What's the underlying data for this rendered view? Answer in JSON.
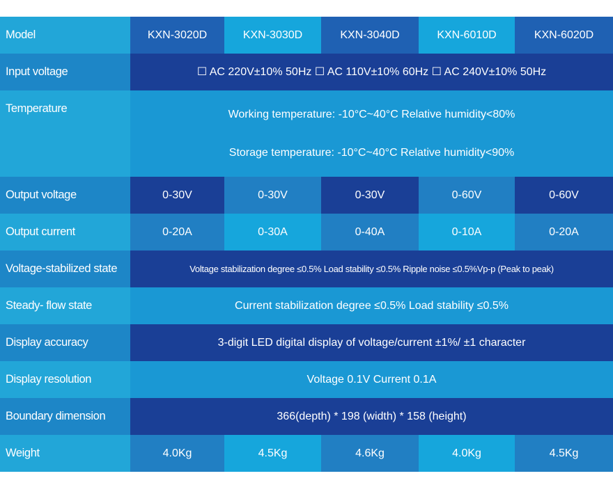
{
  "table": {
    "model": {
      "label": "Model",
      "values": [
        "KXN-3020D",
        "KXN-3030D",
        "KXN-3040D",
        "KXN-6010D",
        "KXN-6020D"
      ]
    },
    "input_voltage": {
      "label": "Input voltage",
      "value": "☐ AC 220V±10% 50Hz ☐ AC 110V±10% 60Hz ☐ AC 240V±10% 50Hz"
    },
    "temperature": {
      "label": "Temperature",
      "working": "Working temperature: -10°C~40°C Relative humidity<80%",
      "storage": "Storage temperature: -10°C~40°C Relative humidity<90%"
    },
    "output_voltage": {
      "label": "Output voltage",
      "values": [
        "0-30V",
        "0-30V",
        "0-30V",
        "0-60V",
        "0-60V"
      ]
    },
    "output_current": {
      "label": "Output current",
      "values": [
        "0-20A",
        "0-30A",
        "0-40A",
        "0-10A",
        "0-20A"
      ]
    },
    "voltage_stabilized": {
      "label": "Voltage-stabilized state",
      "value": "Voltage stabilization degree ≤0.5%  Load stability ≤0.5%  Ripple noise ≤0.5%Vp-p (Peak to peak)"
    },
    "steady_flow": {
      "label": "Steady- flow state",
      "value": "Current stabilization degree ≤0.5%  Load stability ≤0.5%"
    },
    "display_accuracy": {
      "label": "Display accuracy",
      "value": "3-digit LED digital display of voltage/current ±1%/ ±1 character"
    },
    "display_resolution": {
      "label": "Display resolution",
      "value": "Voltage 0.1V  Current 0.1A"
    },
    "boundary_dimension": {
      "label": "Boundary dimension",
      "value": "366(depth) * 198 (width) * 158 (height)"
    },
    "weight": {
      "label": "Weight",
      "values": [
        "4.0Kg",
        "4.5Kg",
        "4.6Kg",
        "4.0Kg",
        "4.5Kg"
      ]
    }
  }
}
